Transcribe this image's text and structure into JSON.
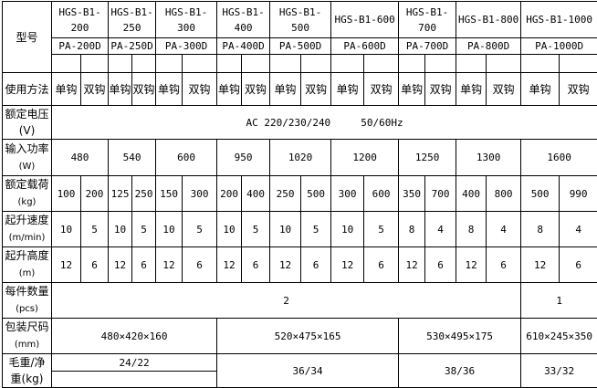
{
  "labels": {
    "model": "型号",
    "usage": "使用方法",
    "voltage": "额定电压",
    "voltage_unit": "(V)",
    "power": "输入功率",
    "power_unit": "(W)",
    "load": "额定载荷",
    "load_unit": "(kg)",
    "speed": "起升速度",
    "speed_unit": "(m/min)",
    "height": "起升高度",
    "height_unit": "(m)",
    "qty": "每件数量",
    "qty_unit": "(pcs)",
    "pack": "包装尺码",
    "pack_unit": "(mm)",
    "weight": "毛重/净",
    "weight_unit": "重(kg)"
  },
  "models_hgs": [
    "HGS-B1-200",
    "HGS-B1-250",
    "HGS-B1-300",
    "HGS-B1-400",
    "HGS-B1-500",
    "HGS-B1-600",
    "HGS-B1-700",
    "HGS-B1-800",
    "HGS-B1-1000"
  ],
  "models_pa": [
    "PA-200D",
    "PA-250D",
    "PA-300D",
    "PA-400D",
    "PA-500D",
    "PA-600D",
    "PA-700D",
    "PA-800D",
    "PA-1000D"
  ],
  "usage": {
    "single": "单钩",
    "double": "双钩"
  },
  "voltage_value": "AC 220/230/240     50/60Hz",
  "power": [
    "480",
    "540",
    "600",
    "950",
    "1020",
    "1200",
    "1250",
    "1300",
    "1600"
  ],
  "load": [
    "100",
    "200",
    "125",
    "250",
    "150",
    "300",
    "200",
    "400",
    "250",
    "500",
    "300",
    "600",
    "350",
    "700",
    "400",
    "800",
    "500",
    "990"
  ],
  "speed": [
    "10",
    "5",
    "10",
    "5",
    "10",
    "5",
    "10",
    "5",
    "10",
    "5",
    "10",
    "5",
    "8",
    "4",
    "8",
    "4",
    "8",
    "4"
  ],
  "height": [
    "12",
    "6",
    "12",
    "6",
    "12",
    "6",
    "12",
    "6",
    "12",
    "6",
    "12",
    "6",
    "12",
    "6",
    "12",
    "6",
    "12",
    "6"
  ],
  "qty": [
    "2",
    "1"
  ],
  "pack": [
    "480×420×160",
    "520×475×165",
    "530×495×175",
    "610×245×350"
  ],
  "weight": [
    "24/22",
    "36/34",
    "38/36",
    "33/32"
  ]
}
